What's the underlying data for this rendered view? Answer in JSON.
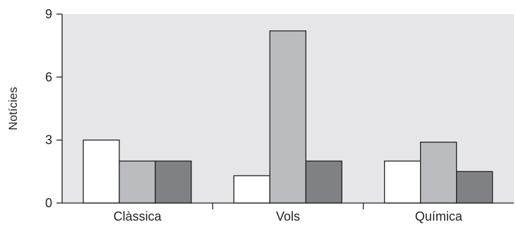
{
  "chart_data": {
    "type": "bar",
    "title": "",
    "xlabel": "",
    "ylabel": "Notícies",
    "categories": [
      "Clàssica",
      "Vols",
      "Química"
    ],
    "series": [
      {
        "values": [
          3,
          1.3,
          2
        ],
        "color": "#ffffff"
      },
      {
        "values": [
          2,
          8.2,
          2.9
        ],
        "color": "#bbbcbf"
      },
      {
        "values": [
          2,
          2,
          1.5
        ],
        "color": "#808184"
      }
    ],
    "ylim": [
      0,
      9
    ],
    "yticks": [
      0,
      3,
      6,
      9
    ],
    "grid": false,
    "plot_background": "#e6e6e8",
    "bar_outline_color": "#222222"
  }
}
